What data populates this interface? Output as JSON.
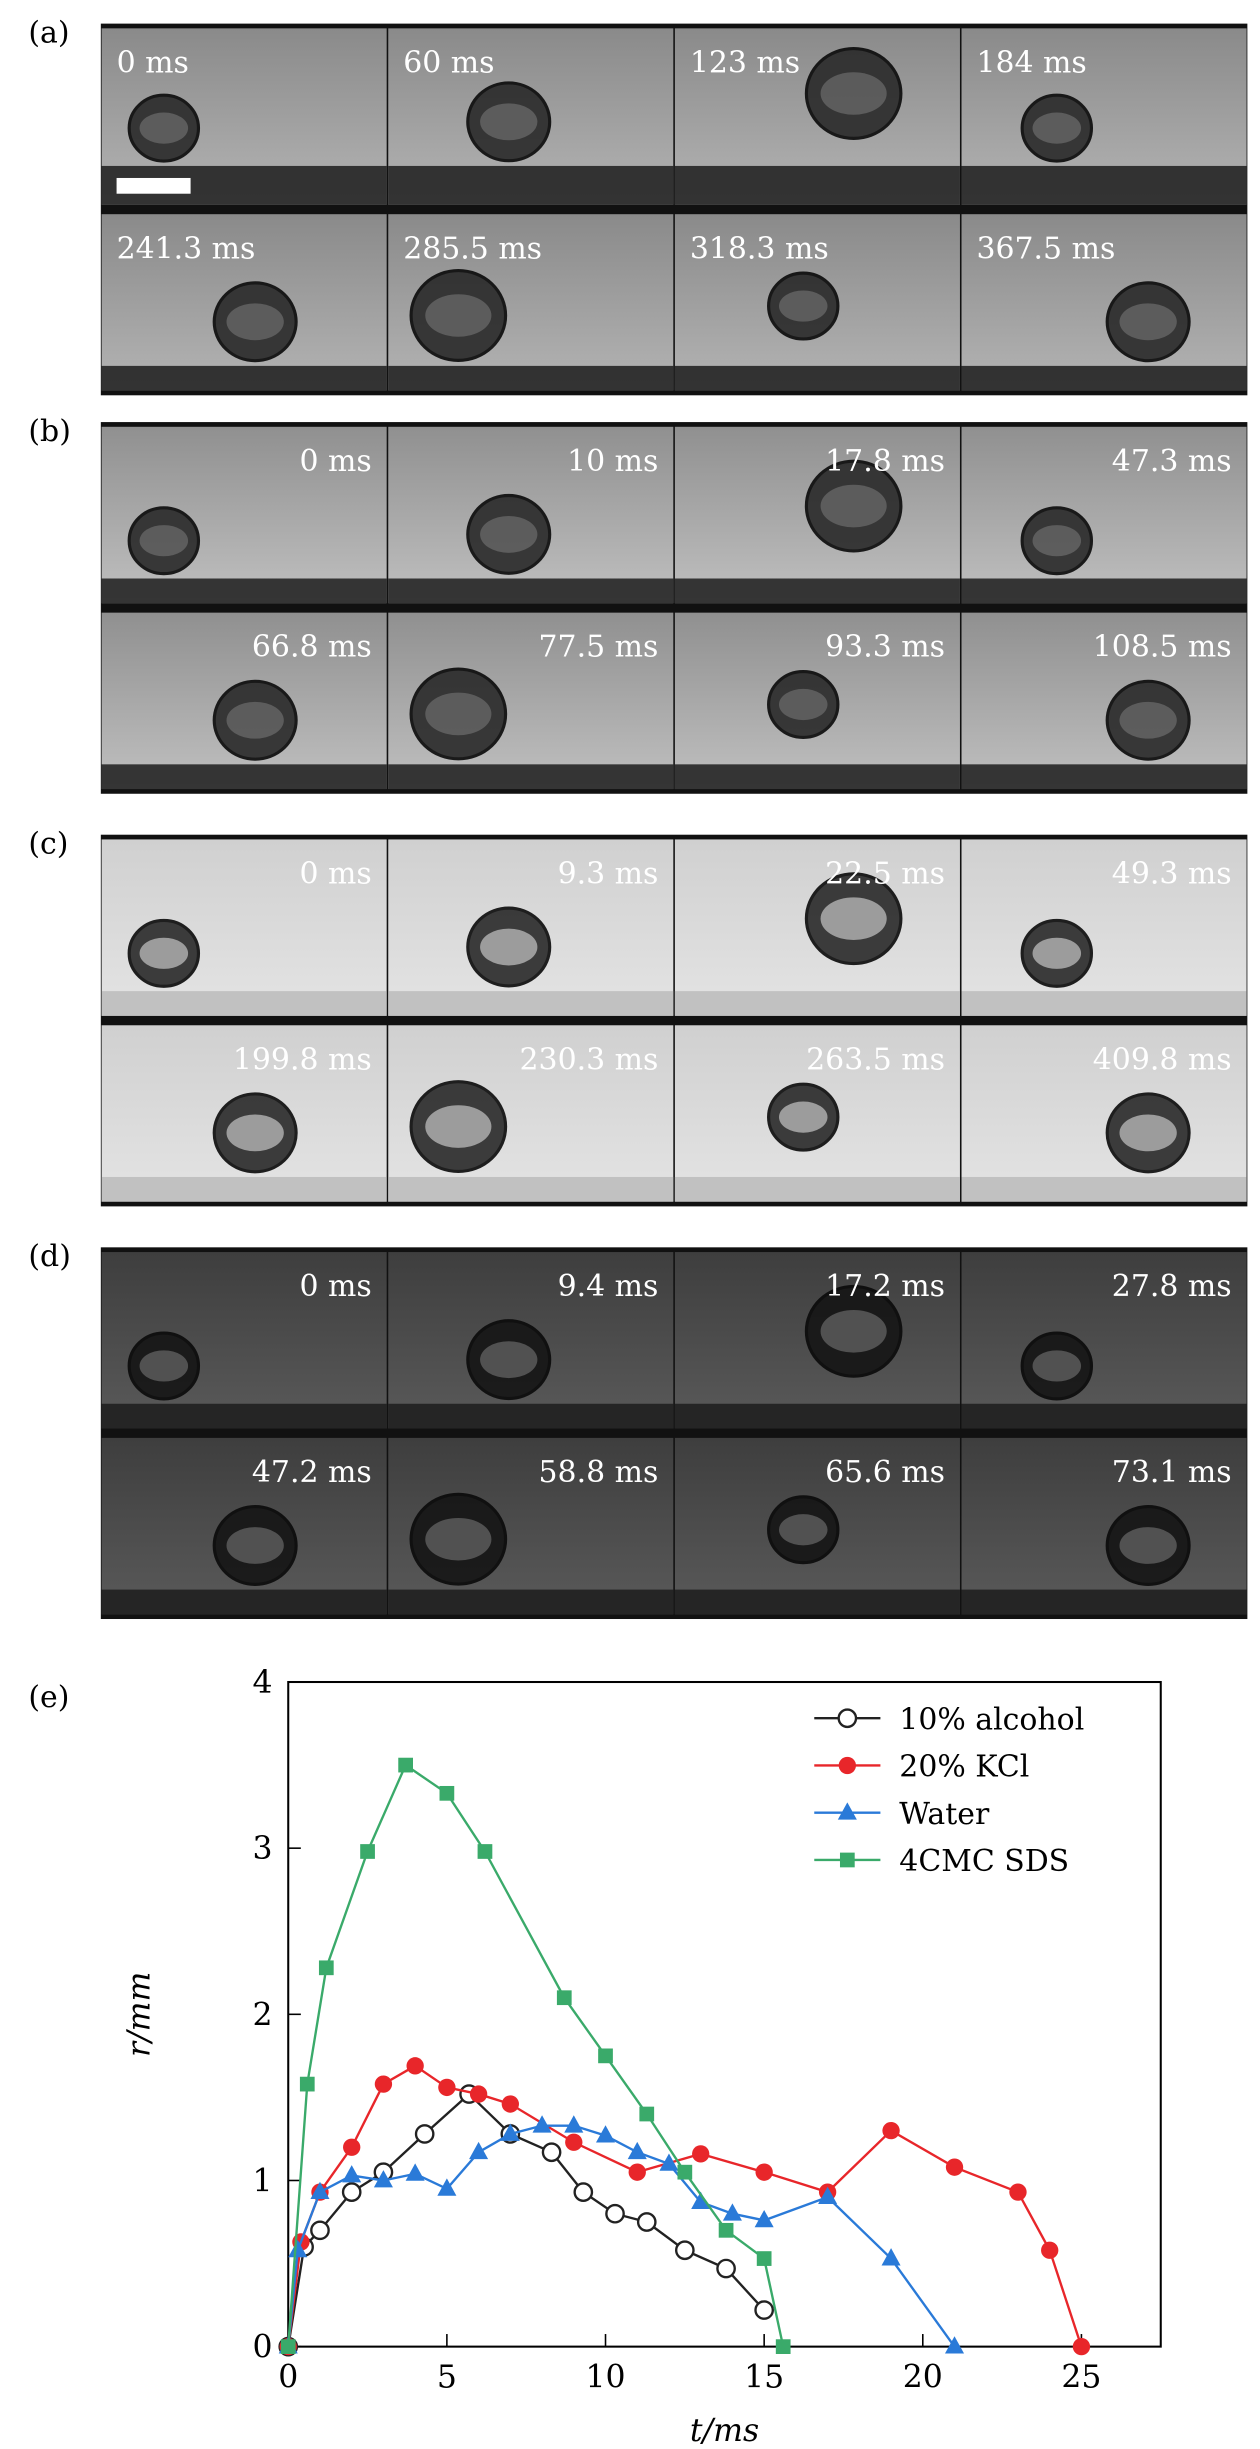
{
  "panels": [
    {
      "label": "(a)",
      "frames": [
        "0 ms",
        "60 ms",
        "123 ms",
        "184 ms",
        "241.3 ms",
        "285.5 ms",
        "318.3 ms",
        "367.5 ms"
      ]
    },
    {
      "label": "(b)",
      "frames": [
        "0 ms",
        "10 ms",
        "17.8 ms",
        "47.3 ms",
        "66.8 ms",
        "77.5 ms",
        "93.3 ms",
        "108.5 ms"
      ]
    },
    {
      "label": "(c)",
      "frames": [
        "0 ms",
        "9.3 ms",
        "22.5 ms",
        "49.3 ms",
        "199.8 ms",
        "230.3 ms",
        "263.5 ms",
        "409.8 ms"
      ]
    },
    {
      "label": "(d)",
      "frames": [
        "0 ms",
        "9.4 ms",
        "17.2 ms",
        "27.8 ms",
        "47.2 ms",
        "58.8 ms",
        "65.6 ms",
        "73.1 ms"
      ]
    }
  ],
  "chart_data": {
    "type": "line",
    "label": "(e)",
    "xlabel": "t/ms",
    "ylabel": "r/mm",
    "xlim": [
      0,
      27.5
    ],
    "ylim": [
      0,
      4
    ],
    "xticks": [
      0,
      5,
      10,
      15,
      20,
      25
    ],
    "yticks": [
      0,
      1,
      2,
      3,
      4
    ],
    "legend": "upper right",
    "series": [
      {
        "name": "10% alcohol",
        "color": "#222222",
        "marker": "circle-open",
        "x": [
          0,
          0.5,
          1,
          2,
          3,
          4.3,
          5.7,
          7,
          8.3,
          9.3,
          10.3,
          11.3,
          12.5,
          13.8,
          15
        ],
        "values": [
          0,
          0.6,
          0.7,
          0.93,
          1.05,
          1.28,
          1.52,
          1.28,
          1.17,
          0.93,
          0.8,
          0.75,
          0.58,
          0.47,
          0.22
        ]
      },
      {
        "name": "20% KCl",
        "color": "#e8262a",
        "marker": "circle",
        "x": [
          0,
          0.4,
          1,
          2,
          3,
          4,
          5,
          6,
          7,
          9,
          11,
          13,
          15,
          17,
          19,
          21,
          23,
          24,
          25
        ],
        "values": [
          0,
          0.63,
          0.93,
          1.2,
          1.58,
          1.69,
          1.56,
          1.52,
          1.46,
          1.23,
          1.05,
          1.16,
          1.05,
          0.93,
          1.3,
          1.08,
          0.93,
          0.58,
          0
        ]
      },
      {
        "name": "Water",
        "color": "#2a7ad8",
        "marker": "triangle",
        "x": [
          0,
          0.3,
          1,
          2,
          3,
          4,
          5,
          6,
          7,
          8,
          9,
          10,
          11,
          12,
          13,
          14,
          15,
          17,
          19,
          21
        ],
        "values": [
          0,
          0.58,
          0.93,
          1.03,
          1.0,
          1.04,
          0.95,
          1.17,
          1.28,
          1.33,
          1.33,
          1.27,
          1.17,
          1.1,
          0.87,
          0.8,
          0.76,
          0.9,
          0.53,
          0
        ]
      },
      {
        "name": "4CMC SDS",
        "color": "#3aaa6a",
        "marker": "square",
        "x": [
          0,
          0.6,
          1.2,
          2.5,
          3.7,
          5,
          6.2,
          8.7,
          10,
          11.3,
          12.5,
          13.8,
          15,
          15.6
        ],
        "values": [
          0,
          1.58,
          2.28,
          2.98,
          3.5,
          3.33,
          2.98,
          2.1,
          1.75,
          1.4,
          1.05,
          0.7,
          0.53,
          0
        ]
      }
    ]
  }
}
